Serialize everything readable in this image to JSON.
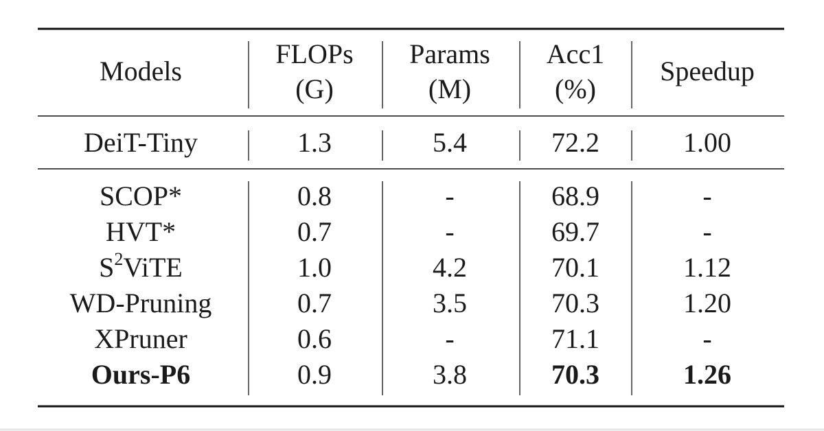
{
  "table": {
    "header": [
      [
        "Models"
      ],
      [
        "FLOPs",
        "(G)"
      ],
      [
        "Params",
        "(M)"
      ],
      [
        "Acc1",
        "(%)"
      ],
      [
        "Speedup"
      ]
    ],
    "baseline": [
      "DeiT-Tiny",
      "1.3",
      "5.4",
      "72.2",
      "1.00"
    ],
    "rows": [
      [
        "SCOP*",
        "0.8",
        "-",
        "68.9",
        "-"
      ],
      [
        "HVT*",
        "0.7",
        "-",
        "69.7",
        "-"
      ],
      [
        {
          "base": "S",
          "sup": "2",
          "rest": "ViTE"
        },
        "1.0",
        "4.2",
        "70.1",
        "1.12"
      ],
      [
        "WD-Pruning",
        "0.7",
        "3.5",
        "70.3",
        "1.20"
      ],
      [
        "XPruner",
        "0.6",
        "-",
        "71.1",
        "-"
      ],
      [
        "Ours-P6",
        "0.9",
        "3.8",
        "70.3",
        "1.26"
      ]
    ],
    "bold_cells": [
      [
        5,
        0
      ],
      [
        5,
        3
      ],
      [
        5,
        4
      ]
    ]
  }
}
